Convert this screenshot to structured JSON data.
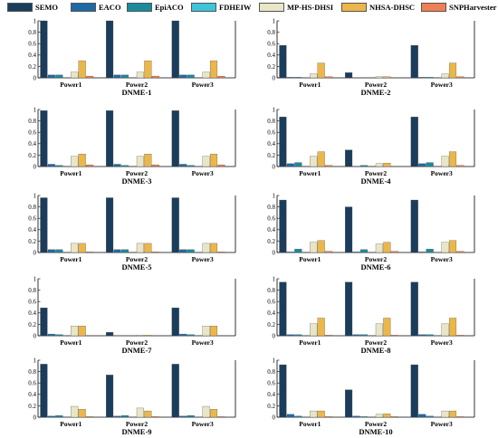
{
  "legend": {
    "items": [
      {
        "label": "SEMO",
        "color": "#1b3d5c"
      },
      {
        "label": "EACO",
        "color": "#1f6aa5"
      },
      {
        "label": "EpiACO",
        "color": "#1a8a9c"
      },
      {
        "label": "FDHEIW",
        "color": "#3fc4d8"
      },
      {
        "label": "MP-HS-DHSI",
        "color": "#e8e6c6"
      },
      {
        "label": "NHSA-DHSC",
        "color": "#ebb74a"
      },
      {
        "label": "SNPHarvester",
        "color": "#f07f55"
      }
    ]
  },
  "chart_data": [
    {
      "type": "bar",
      "title": "DNME-1",
      "categories": [
        "Power1",
        "Power2",
        "Power3"
      ],
      "ylim": [
        0,
        1
      ],
      "yticks": [
        "0",
        "0.2",
        "0.4",
        "0.6",
        "0.8",
        "1"
      ],
      "series": [
        {
          "name": "SEMO",
          "values": [
            1.0,
            1.0,
            1.0
          ]
        },
        {
          "name": "EACO",
          "values": [
            0.05,
            0.05,
            0.05
          ]
        },
        {
          "name": "EpiACO",
          "values": [
            0.05,
            0.05,
            0.05
          ]
        },
        {
          "name": "FDHEIW",
          "values": [
            0.0,
            0.0,
            0.0
          ]
        },
        {
          "name": "MP-HS-DHSI",
          "values": [
            0.1,
            0.1,
            0.1
          ]
        },
        {
          "name": "NHSA-DHSC",
          "values": [
            0.3,
            0.3,
            0.3
          ]
        },
        {
          "name": "SNPHarvester",
          "values": [
            0.03,
            0.03,
            0.03
          ]
        }
      ]
    },
    {
      "type": "bar",
      "title": "DNME-2",
      "categories": [
        "Power1",
        "Power2",
        "Power3"
      ],
      "ylim": [
        0,
        1
      ],
      "yticks": [
        "0",
        "0.2",
        "0.4",
        "0.6",
        "0.8",
        "1"
      ],
      "series": [
        {
          "name": "SEMO",
          "values": [
            0.57,
            0.09,
            0.57
          ]
        },
        {
          "name": "EACO",
          "values": [
            0.01,
            0.0,
            0.01
          ]
        },
        {
          "name": "EpiACO",
          "values": [
            0.01,
            0.0,
            0.01
          ]
        },
        {
          "name": "FDHEIW",
          "values": [
            0.0,
            0.0,
            0.0
          ]
        },
        {
          "name": "MP-HS-DHSI",
          "values": [
            0.07,
            0.02,
            0.07
          ]
        },
        {
          "name": "NHSA-DHSC",
          "values": [
            0.26,
            0.02,
            0.26
          ]
        },
        {
          "name": "SNPHarvester",
          "values": [
            0.02,
            0.0,
            0.02
          ]
        }
      ]
    },
    {
      "type": "bar",
      "title": "DNME-3",
      "categories": [
        "Power1",
        "Power2",
        "Power3"
      ],
      "ylim": [
        0,
        1
      ],
      "yticks": [
        "0",
        "0.2",
        "0.4",
        "0.6",
        "0.8",
        "1"
      ],
      "series": [
        {
          "name": "SEMO",
          "values": [
            0.98,
            0.98,
            0.98
          ]
        },
        {
          "name": "EACO",
          "values": [
            0.04,
            0.04,
            0.04
          ]
        },
        {
          "name": "EpiACO",
          "values": [
            0.02,
            0.02,
            0.02
          ]
        },
        {
          "name": "FDHEIW",
          "values": [
            0.0,
            0.0,
            0.0
          ]
        },
        {
          "name": "MP-HS-DHSI",
          "values": [
            0.18,
            0.18,
            0.18
          ]
        },
        {
          "name": "NHSA-DHSC",
          "values": [
            0.22,
            0.22,
            0.22
          ]
        },
        {
          "name": "SNPHarvester",
          "values": [
            0.03,
            0.03,
            0.03
          ]
        }
      ]
    },
    {
      "type": "bar",
      "title": "DNME-4",
      "categories": [
        "Power1",
        "Power2",
        "Power3"
      ],
      "ylim": [
        0,
        1
      ],
      "yticks": [
        "0",
        "0.2",
        "0.4",
        "0.6",
        "0.8",
        "1"
      ],
      "series": [
        {
          "name": "SEMO",
          "values": [
            0.87,
            0.29,
            0.87
          ]
        },
        {
          "name": "EACO",
          "values": [
            0.05,
            0.0,
            0.05
          ]
        },
        {
          "name": "EpiACO",
          "values": [
            0.07,
            0.02,
            0.07
          ]
        },
        {
          "name": "FDHEIW",
          "values": [
            0.0,
            0.0,
            0.0
          ]
        },
        {
          "name": "MP-HS-DHSI",
          "values": [
            0.18,
            0.05,
            0.18
          ]
        },
        {
          "name": "NHSA-DHSC",
          "values": [
            0.26,
            0.06,
            0.26
          ]
        },
        {
          "name": "SNPHarvester",
          "values": [
            0.02,
            0.0,
            0.02
          ]
        }
      ]
    },
    {
      "type": "bar",
      "title": "DNME-5",
      "categories": [
        "Power1",
        "Power2",
        "Power3"
      ],
      "ylim": [
        0,
        1
      ],
      "yticks": [
        "0",
        "0.2",
        "0.4",
        "0.6",
        "0.8",
        "1"
      ],
      "series": [
        {
          "name": "SEMO",
          "values": [
            0.96,
            0.96,
            0.96
          ]
        },
        {
          "name": "EACO",
          "values": [
            0.05,
            0.05,
            0.05
          ]
        },
        {
          "name": "EpiACO",
          "values": [
            0.05,
            0.05,
            0.05
          ]
        },
        {
          "name": "FDHEIW",
          "values": [
            0.0,
            0.0,
            0.0
          ]
        },
        {
          "name": "MP-HS-DHSI",
          "values": [
            0.16,
            0.16,
            0.16
          ]
        },
        {
          "name": "NHSA-DHSC",
          "values": [
            0.16,
            0.16,
            0.16
          ]
        },
        {
          "name": "SNPHarvester",
          "values": [
            0.01,
            0.01,
            0.01
          ]
        }
      ]
    },
    {
      "type": "bar",
      "title": "DNME-6",
      "categories": [
        "Power1",
        "Power2",
        "Power3"
      ],
      "ylim": [
        0,
        1
      ],
      "yticks": [
        "0",
        "0.2",
        "0.4",
        "0.6",
        "0.8",
        "1"
      ],
      "series": [
        {
          "name": "SEMO",
          "values": [
            0.92,
            0.8,
            0.92
          ]
        },
        {
          "name": "EACO",
          "values": [
            0.01,
            0.01,
            0.01
          ]
        },
        {
          "name": "EpiACO",
          "values": [
            0.06,
            0.05,
            0.06
          ]
        },
        {
          "name": "FDHEIW",
          "values": [
            0.0,
            0.0,
            0.0
          ]
        },
        {
          "name": "MP-HS-DHSI",
          "values": [
            0.18,
            0.15,
            0.18
          ]
        },
        {
          "name": "NHSA-DHSC",
          "values": [
            0.21,
            0.18,
            0.21
          ]
        },
        {
          "name": "SNPHarvester",
          "values": [
            0.02,
            0.02,
            0.02
          ]
        }
      ]
    },
    {
      "type": "bar",
      "title": "DNME-7",
      "categories": [
        "Power1",
        "Power2",
        "Power3"
      ],
      "ylim": [
        0,
        1
      ],
      "yticks": [
        "0",
        "0.2",
        "0.4",
        "0.6",
        "0.8",
        "1"
      ],
      "series": [
        {
          "name": "SEMO",
          "values": [
            0.49,
            0.06,
            0.49
          ]
        },
        {
          "name": "EACO",
          "values": [
            0.03,
            0.0,
            0.03
          ]
        },
        {
          "name": "EpiACO",
          "values": [
            0.02,
            0.0,
            0.02
          ]
        },
        {
          "name": "FDHEIW",
          "values": [
            0.0,
            0.0,
            0.0
          ]
        },
        {
          "name": "MP-HS-DHSI",
          "values": [
            0.17,
            0.01,
            0.17
          ]
        },
        {
          "name": "NHSA-DHSC",
          "values": [
            0.17,
            0.01,
            0.17
          ]
        },
        {
          "name": "SNPHarvester",
          "values": [
            0.0,
            0.0,
            0.0
          ]
        }
      ]
    },
    {
      "type": "bar",
      "title": "DNME-8",
      "categories": [
        "Power1",
        "Power2",
        "Power3"
      ],
      "ylim": [
        0,
        1
      ],
      "yticks": [
        "0",
        "0.2",
        "0.4",
        "0.6",
        "0.8",
        "1"
      ],
      "series": [
        {
          "name": "SEMO",
          "values": [
            0.94,
            0.94,
            0.94
          ]
        },
        {
          "name": "EACO",
          "values": [
            0.02,
            0.02,
            0.02
          ]
        },
        {
          "name": "EpiACO",
          "values": [
            0.02,
            0.02,
            0.02
          ]
        },
        {
          "name": "FDHEIW",
          "values": [
            0.0,
            0.0,
            0.0
          ]
        },
        {
          "name": "MP-HS-DHSI",
          "values": [
            0.21,
            0.21,
            0.21
          ]
        },
        {
          "name": "NHSA-DHSC",
          "values": [
            0.31,
            0.31,
            0.31
          ]
        },
        {
          "name": "SNPHarvester",
          "values": [
            0.01,
            0.01,
            0.01
          ]
        }
      ]
    },
    {
      "type": "bar",
      "title": "DNME-9",
      "categories": [
        "Power1",
        "Power2",
        "Power3"
      ],
      "ylim": [
        0,
        1
      ],
      "yticks": [
        "0",
        "0.2",
        "0.4",
        "0.6",
        "0.8",
        "1"
      ],
      "series": [
        {
          "name": "SEMO",
          "values": [
            0.93,
            0.74,
            0.93
          ]
        },
        {
          "name": "EACO",
          "values": [
            0.02,
            0.02,
            0.02
          ]
        },
        {
          "name": "EpiACO",
          "values": [
            0.03,
            0.03,
            0.03
          ]
        },
        {
          "name": "FDHEIW",
          "values": [
            0.0,
            0.0,
            0.0
          ]
        },
        {
          "name": "MP-HS-DHSI",
          "values": [
            0.19,
            0.16,
            0.19
          ]
        },
        {
          "name": "NHSA-DHSC",
          "values": [
            0.14,
            0.11,
            0.14
          ]
        },
        {
          "name": "SNPHarvester",
          "values": [
            0.01,
            0.01,
            0.01
          ]
        }
      ]
    },
    {
      "type": "bar",
      "title": "DNME-10",
      "categories": [
        "Power1",
        "Power2",
        "Power3"
      ],
      "ylim": [
        0,
        1
      ],
      "yticks": [
        "0",
        "0.2",
        "0.4",
        "0.6",
        "0.8",
        "1"
      ],
      "series": [
        {
          "name": "SEMO",
          "values": [
            0.92,
            0.48,
            0.92
          ]
        },
        {
          "name": "EACO",
          "values": [
            0.05,
            0.02,
            0.05
          ]
        },
        {
          "name": "EpiACO",
          "values": [
            0.02,
            0.01,
            0.02
          ]
        },
        {
          "name": "FDHEIW",
          "values": [
            0.0,
            0.0,
            0.0
          ]
        },
        {
          "name": "MP-HS-DHSI",
          "values": [
            0.11,
            0.05,
            0.11
          ]
        },
        {
          "name": "NHSA-DHSC",
          "values": [
            0.11,
            0.06,
            0.11
          ]
        },
        {
          "name": "SNPHarvester",
          "values": [
            0.01,
            0.01,
            0.01
          ]
        }
      ]
    }
  ]
}
